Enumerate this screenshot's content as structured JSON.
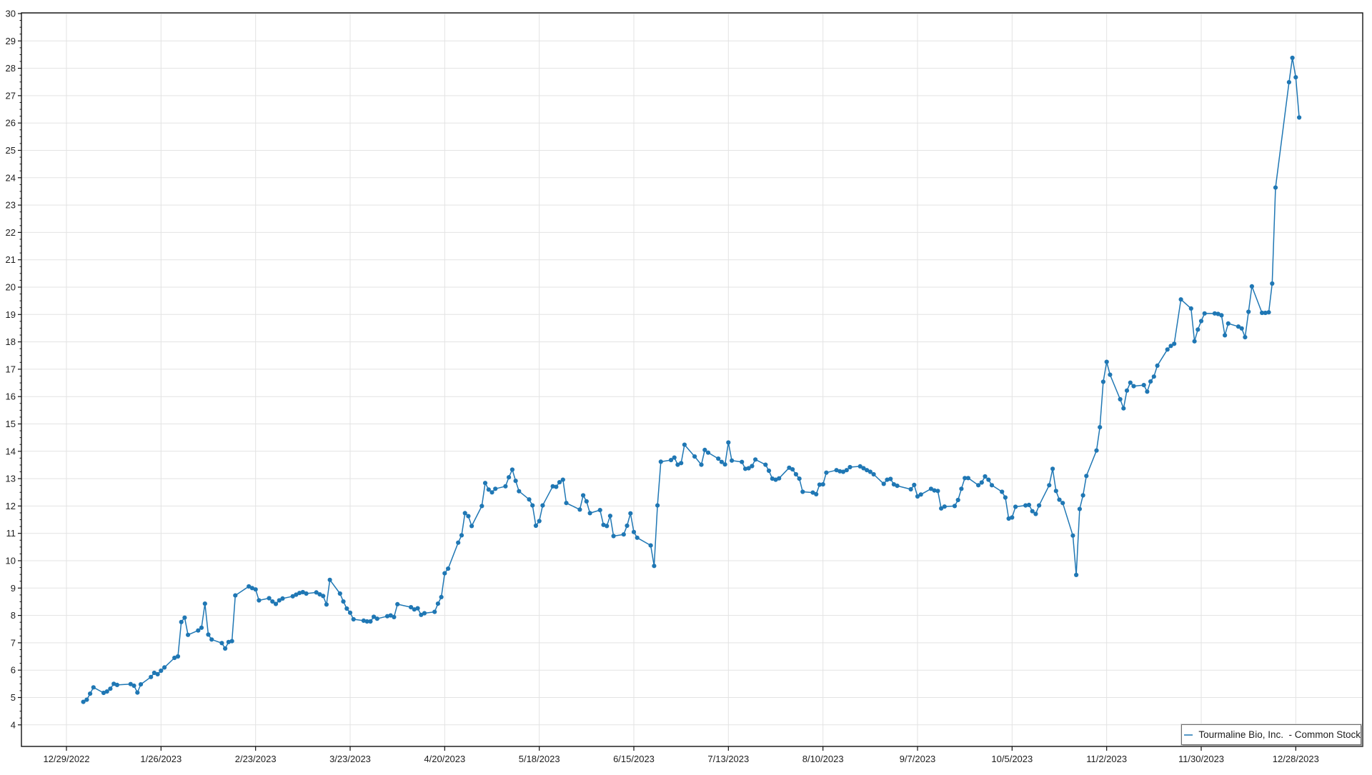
{
  "chart_data": {
    "type": "line",
    "title": "",
    "legend_position": "bottom-right",
    "grid": true,
    "colors": {
      "line": "#1f77b4",
      "marker": "#1f77b4",
      "grid": "#e3e3e3",
      "axis": "#111111",
      "text": "#1c1c1c",
      "background": "#ffffff"
    },
    "y_axis": {
      "min": 4,
      "max": 30,
      "tick_step": 1,
      "tick_labels": [
        4,
        5,
        6,
        7,
        8,
        9,
        10,
        11,
        12,
        13,
        14,
        15,
        16,
        17,
        18,
        19,
        20,
        21,
        22,
        23,
        24,
        25,
        26,
        27,
        28,
        29,
        30
      ]
    },
    "x_axis": {
      "start_label_date": "2022-12-29",
      "tick_interval_days": 28,
      "tick_labels": [
        "12/29/2022",
        "1/26/2023",
        "2/23/2023",
        "3/23/2023",
        "4/20/2023",
        "5/18/2023",
        "6/15/2023",
        "7/13/2023",
        "8/10/2023",
        "9/7/2023",
        "10/5/2023",
        "11/2/2023",
        "11/30/2023",
        "12/28/2023"
      ]
    },
    "series": [
      {
        "name": "Tourmaline Bio, Inc.  - Common Stock",
        "color": "#1f77b4",
        "dates": [
          "2023-01-03",
          "2023-01-04",
          "2023-01-05",
          "2023-01-06",
          "2023-01-09",
          "2023-01-10",
          "2023-01-11",
          "2023-01-12",
          "2023-01-13",
          "2023-01-17",
          "2023-01-18",
          "2023-01-19",
          "2023-01-20",
          "2023-01-23",
          "2023-01-24",
          "2023-01-25",
          "2023-01-26",
          "2023-01-27",
          "2023-01-30",
          "2023-01-31",
          "2023-02-01",
          "2023-02-02",
          "2023-02-03",
          "2023-02-06",
          "2023-02-07",
          "2023-02-08",
          "2023-02-09",
          "2023-02-10",
          "2023-02-13",
          "2023-02-14",
          "2023-02-15",
          "2023-02-16",
          "2023-02-17",
          "2023-02-21",
          "2023-02-22",
          "2023-02-23",
          "2023-02-24",
          "2023-02-27",
          "2023-02-28",
          "2023-03-01",
          "2023-03-02",
          "2023-03-03",
          "2023-03-06",
          "2023-03-07",
          "2023-03-08",
          "2023-03-09",
          "2023-03-10",
          "2023-03-13",
          "2023-03-14",
          "2023-03-15",
          "2023-03-16",
          "2023-03-17",
          "2023-03-20",
          "2023-03-21",
          "2023-03-22",
          "2023-03-23",
          "2023-03-24",
          "2023-03-27",
          "2023-03-28",
          "2023-03-29",
          "2023-03-30",
          "2023-03-31",
          "2023-04-03",
          "2023-04-04",
          "2023-04-05",
          "2023-04-06",
          "2023-04-10",
          "2023-04-11",
          "2023-04-12",
          "2023-04-13",
          "2023-04-14",
          "2023-04-17",
          "2023-04-18",
          "2023-04-19",
          "2023-04-20",
          "2023-04-21",
          "2023-04-24",
          "2023-04-25",
          "2023-04-26",
          "2023-04-27",
          "2023-04-28",
          "2023-05-01",
          "2023-05-02",
          "2023-05-03",
          "2023-05-04",
          "2023-05-05",
          "2023-05-08",
          "2023-05-09",
          "2023-05-10",
          "2023-05-11",
          "2023-05-12",
          "2023-05-15",
          "2023-05-16",
          "2023-05-17",
          "2023-05-18",
          "2023-05-19",
          "2023-05-22",
          "2023-05-23",
          "2023-05-24",
          "2023-05-25",
          "2023-05-26",
          "2023-05-30",
          "2023-05-31",
          "2023-06-01",
          "2023-06-02",
          "2023-06-05",
          "2023-06-06",
          "2023-06-07",
          "2023-06-08",
          "2023-06-09",
          "2023-06-12",
          "2023-06-13",
          "2023-06-14",
          "2023-06-15",
          "2023-06-16",
          "2023-06-20",
          "2023-06-21",
          "2023-06-22",
          "2023-06-23",
          "2023-06-26",
          "2023-06-27",
          "2023-06-28",
          "2023-06-29",
          "2023-06-30",
          "2023-07-03",
          "2023-07-05",
          "2023-07-06",
          "2023-07-07",
          "2023-07-10",
          "2023-07-11",
          "2023-07-12",
          "2023-07-13",
          "2023-07-14",
          "2023-07-17",
          "2023-07-18",
          "2023-07-19",
          "2023-07-20",
          "2023-07-21",
          "2023-07-24",
          "2023-07-25",
          "2023-07-26",
          "2023-07-27",
          "2023-07-28",
          "2023-07-31",
          "2023-08-01",
          "2023-08-02",
          "2023-08-03",
          "2023-08-04",
          "2023-08-07",
          "2023-08-08",
          "2023-08-09",
          "2023-08-10",
          "2023-08-11",
          "2023-08-14",
          "2023-08-15",
          "2023-08-16",
          "2023-08-17",
          "2023-08-18",
          "2023-08-21",
          "2023-08-22",
          "2023-08-23",
          "2023-08-24",
          "2023-08-25",
          "2023-08-28",
          "2023-08-29",
          "2023-08-30",
          "2023-08-31",
          "2023-09-01",
          "2023-09-05",
          "2023-09-06",
          "2023-09-07",
          "2023-09-08",
          "2023-09-11",
          "2023-09-12",
          "2023-09-13",
          "2023-09-14",
          "2023-09-15",
          "2023-09-18",
          "2023-09-19",
          "2023-09-20",
          "2023-09-21",
          "2023-09-22",
          "2023-09-25",
          "2023-09-26",
          "2023-09-27",
          "2023-09-28",
          "2023-09-29",
          "2023-10-02",
          "2023-10-03",
          "2023-10-04",
          "2023-10-05",
          "2023-10-06",
          "2023-10-09",
          "2023-10-10",
          "2023-10-11",
          "2023-10-12",
          "2023-10-13",
          "2023-10-16",
          "2023-10-17",
          "2023-10-18",
          "2023-10-19",
          "2023-10-20",
          "2023-10-23",
          "2023-10-24",
          "2023-10-25",
          "2023-10-26",
          "2023-10-27",
          "2023-10-30",
          "2023-10-31",
          "2023-11-01",
          "2023-11-02",
          "2023-11-03",
          "2023-11-06",
          "2023-11-07",
          "2023-11-08",
          "2023-11-09",
          "2023-11-10",
          "2023-11-13",
          "2023-11-14",
          "2023-11-15",
          "2023-11-16",
          "2023-11-17",
          "2023-11-20",
          "2023-11-21",
          "2023-11-22",
          "2023-11-24",
          "2023-11-27",
          "2023-11-28",
          "2023-11-29",
          "2023-11-30",
          "2023-12-01",
          "2023-12-04",
          "2023-12-05",
          "2023-12-06",
          "2023-12-07",
          "2023-12-08",
          "2023-12-11",
          "2023-12-12",
          "2023-12-13",
          "2023-12-14",
          "2023-12-15",
          "2023-12-18",
          "2023-12-19",
          "2023-12-20",
          "2023-12-21",
          "2023-12-22",
          "2023-12-26",
          "2023-12-27",
          "2023-12-28",
          "2023-12-29"
        ],
        "values": [
          4.84,
          4.92,
          5.14,
          5.37,
          5.17,
          5.22,
          5.32,
          5.5,
          5.46,
          5.49,
          5.43,
          5.18,
          5.48,
          5.75,
          5.9,
          5.85,
          5.98,
          6.1,
          6.45,
          6.5,
          7.76,
          7.92,
          7.29,
          7.45,
          7.55,
          8.43,
          7.3,
          7.12,
          6.99,
          6.79,
          7.03,
          7.06,
          8.73,
          9.06,
          9.0,
          8.95,
          8.55,
          8.63,
          8.51,
          8.42,
          8.55,
          8.62,
          8.7,
          8.76,
          8.82,
          8.85,
          8.8,
          8.84,
          8.77,
          8.71,
          8.4,
          9.3,
          8.8,
          8.51,
          8.25,
          8.1,
          7.86,
          7.81,
          7.78,
          7.78,
          7.95,
          7.88,
          7.97,
          8.0,
          7.94,
          8.41,
          8.3,
          8.22,
          8.26,
          8.02,
          8.08,
          8.13,
          8.43,
          8.67,
          9.54,
          9.71,
          10.66,
          10.93,
          11.74,
          11.63,
          11.27,
          12.0,
          12.84,
          12.6,
          12.5,
          12.63,
          12.72,
          13.05,
          13.33,
          12.92,
          12.54,
          12.24,
          12.02,
          11.28,
          11.45,
          12.02,
          12.72,
          12.7,
          12.87,
          12.96,
          12.11,
          11.87,
          12.39,
          12.17,
          11.74,
          11.85,
          11.31,
          11.27,
          11.64,
          10.9,
          10.96,
          11.28,
          11.73,
          11.05,
          10.84,
          10.56,
          9.81,
          12.02,
          13.62,
          13.68,
          13.77,
          13.51,
          13.57,
          14.24,
          13.81,
          13.51,
          14.05,
          13.95,
          13.73,
          13.61,
          13.52,
          14.32,
          13.66,
          13.61,
          13.36,
          13.38,
          13.46,
          13.7,
          13.51,
          13.29,
          13.0,
          12.96,
          13.01,
          13.4,
          13.34,
          13.16,
          13.0,
          12.52,
          12.49,
          12.43,
          12.78,
          12.79,
          13.22,
          13.31,
          13.27,
          13.25,
          13.31,
          13.42,
          13.45,
          13.38,
          13.31,
          13.25,
          13.16,
          12.81,
          12.96,
          12.99,
          12.79,
          12.74,
          12.61,
          12.77,
          12.35,
          12.42,
          12.63,
          12.57,
          12.55,
          11.91,
          11.98,
          12.0,
          12.22,
          12.63,
          13.02,
          13.02,
          12.76,
          12.86,
          13.08,
          12.96,
          12.76,
          12.52,
          12.31,
          11.54,
          11.58,
          11.97,
          12.02,
          12.04,
          11.81,
          11.71,
          12.02,
          12.76,
          13.36,
          12.55,
          12.23,
          12.11,
          10.92,
          9.48,
          11.89,
          12.39,
          13.1,
          14.03,
          14.88,
          16.54,
          17.27,
          16.8,
          15.9,
          15.57,
          16.22,
          16.51,
          16.38,
          16.42,
          16.18,
          16.55,
          16.73,
          17.13,
          17.72,
          17.85,
          17.93,
          19.55,
          19.22,
          18.02,
          18.45,
          18.76,
          19.04,
          19.04,
          19.02,
          18.97,
          18.24,
          18.67,
          18.56,
          18.49,
          18.17,
          19.1,
          20.03,
          19.06,
          19.06,
          19.08,
          20.13,
          23.64,
          27.49,
          28.38,
          27.67,
          26.2
        ]
      }
    ]
  }
}
